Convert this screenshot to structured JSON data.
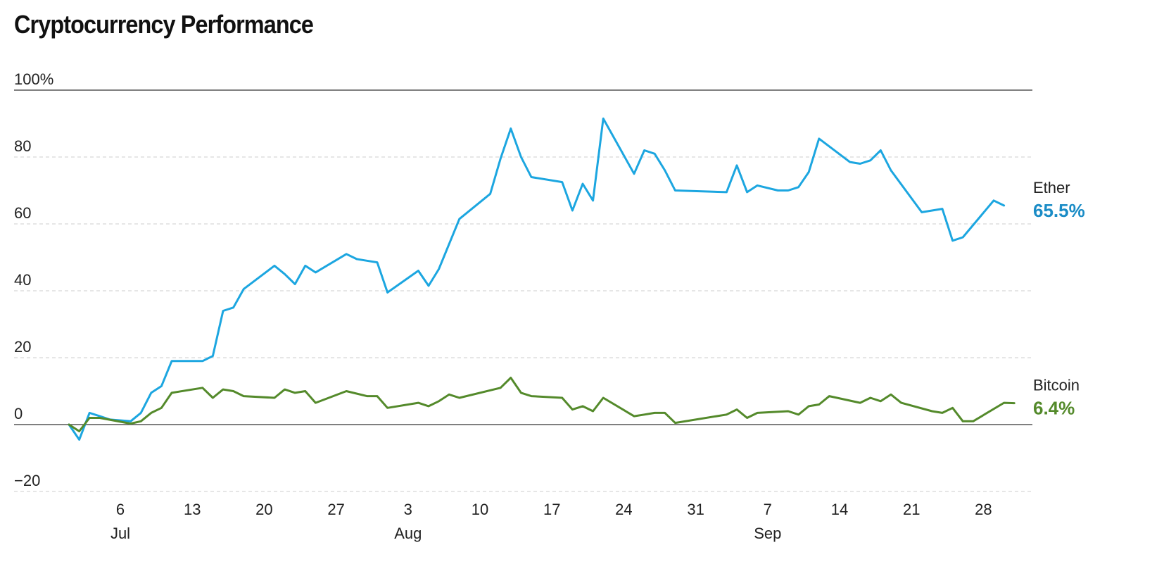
{
  "chart_data": {
    "type": "line",
    "title": "Cryptocurrency Performance",
    "xlabel": "",
    "ylabel": "",
    "y_unit": "%",
    "ylim": [
      -20,
      100
    ],
    "x_range": [
      "2017-07-01",
      "2017-09-30"
    ],
    "grid": true,
    "legend": "none",
    "y_ticks": [
      {
        "value": 100,
        "label": "100%"
      },
      {
        "value": 80,
        "label": "80"
      },
      {
        "value": 60,
        "label": "60"
      },
      {
        "value": 40,
        "label": "40"
      },
      {
        "value": 20,
        "label": "20"
      },
      {
        "value": 0,
        "label": "0"
      },
      {
        "value": -20,
        "label": "−20"
      }
    ],
    "x_ticks": [
      {
        "date": "2017-07-06",
        "label": "6",
        "month": "Jul"
      },
      {
        "date": "2017-07-13",
        "label": "13"
      },
      {
        "date": "2017-07-20",
        "label": "20"
      },
      {
        "date": "2017-07-27",
        "label": "27"
      },
      {
        "date": "2017-08-03",
        "label": "3",
        "month": "Aug"
      },
      {
        "date": "2017-08-10",
        "label": "10"
      },
      {
        "date": "2017-08-17",
        "label": "17"
      },
      {
        "date": "2017-08-24",
        "label": "24"
      },
      {
        "date": "2017-08-31",
        "label": "31"
      },
      {
        "date": "2017-09-07",
        "label": "7",
        "month": "Sep"
      },
      {
        "date": "2017-09-14",
        "label": "14"
      },
      {
        "date": "2017-09-21",
        "label": "21"
      },
      {
        "date": "2017-09-28",
        "label": "28"
      }
    ],
    "series": [
      {
        "name": "Ether",
        "end_label": "65.5%",
        "color": "#1ca6e0",
        "label_color": "#1a8cc6",
        "points": [
          [
            "2017-07-01",
            0
          ],
          [
            "2017-07-02",
            -4.5
          ],
          [
            "2017-07-03",
            3.5
          ],
          [
            "2017-07-04",
            2.5
          ],
          [
            "2017-07-05",
            1.5
          ],
          [
            "2017-07-07",
            1
          ],
          [
            "2017-07-08",
            3.5
          ],
          [
            "2017-07-09",
            9.5
          ],
          [
            "2017-07-10",
            11.5
          ],
          [
            "2017-07-11",
            19
          ],
          [
            "2017-07-14",
            19
          ],
          [
            "2017-07-15",
            20.5
          ],
          [
            "2017-07-16",
            34
          ],
          [
            "2017-07-17",
            35
          ],
          [
            "2017-07-18",
            40.5
          ],
          [
            "2017-07-21",
            47.5
          ],
          [
            "2017-07-22",
            45
          ],
          [
            "2017-07-23",
            42
          ],
          [
            "2017-07-24",
            47.5
          ],
          [
            "2017-07-25",
            45.5
          ],
          [
            "2017-07-28",
            51
          ],
          [
            "2017-07-29",
            49.5
          ],
          [
            "2017-07-30",
            49
          ],
          [
            "2017-07-31",
            48.5
          ],
          [
            "2017-08-01",
            39.5
          ],
          [
            "2017-08-04",
            46
          ],
          [
            "2017-08-05",
            41.5
          ],
          [
            "2017-08-06",
            46.5
          ],
          [
            "2017-08-08",
            61.5
          ],
          [
            "2017-08-11",
            69
          ],
          [
            "2017-08-12",
            79.5
          ],
          [
            "2017-08-13",
            88.5
          ],
          [
            "2017-08-14",
            80
          ],
          [
            "2017-08-15",
            74
          ],
          [
            "2017-08-18",
            72.5
          ],
          [
            "2017-08-19",
            64
          ],
          [
            "2017-08-20",
            72
          ],
          [
            "2017-08-21",
            67
          ],
          [
            "2017-08-22",
            91.5
          ],
          [
            "2017-08-25",
            75
          ],
          [
            "2017-08-26",
            82
          ],
          [
            "2017-08-27",
            81
          ],
          [
            "2017-08-28",
            76
          ],
          [
            "2017-08-29",
            70
          ],
          [
            "2017-09-03",
            69.5
          ],
          [
            "2017-09-04",
            77.5
          ],
          [
            "2017-09-05",
            69.5
          ],
          [
            "2017-09-06",
            71.5
          ],
          [
            "2017-09-08",
            70
          ],
          [
            "2017-09-09",
            70
          ],
          [
            "2017-09-10",
            71
          ],
          [
            "2017-09-11",
            75.5
          ],
          [
            "2017-09-12",
            85.5
          ],
          [
            "2017-09-15",
            78.5
          ],
          [
            "2017-09-16",
            78
          ],
          [
            "2017-09-17",
            79
          ],
          [
            "2017-09-18",
            82
          ],
          [
            "2017-09-19",
            76
          ],
          [
            "2017-09-22",
            63.5
          ],
          [
            "2017-09-24",
            64.5
          ],
          [
            "2017-09-25",
            55
          ],
          [
            "2017-09-26",
            56
          ],
          [
            "2017-09-29",
            67
          ],
          [
            "2017-09-30",
            65.5
          ]
        ]
      },
      {
        "name": "Bitcoin",
        "end_label": "6.4%",
        "color": "#548a2b",
        "label_color": "#548a2b",
        "points": [
          [
            "2017-07-01",
            0
          ],
          [
            "2017-07-02",
            -2
          ],
          [
            "2017-07-03",
            2
          ],
          [
            "2017-07-04",
            2
          ],
          [
            "2017-07-07",
            0.3
          ],
          [
            "2017-07-08",
            1
          ],
          [
            "2017-07-09",
            3.5
          ],
          [
            "2017-07-10",
            5
          ],
          [
            "2017-07-11",
            9.5
          ],
          [
            "2017-07-14",
            11
          ],
          [
            "2017-07-15",
            8
          ],
          [
            "2017-07-16",
            10.5
          ],
          [
            "2017-07-17",
            10
          ],
          [
            "2017-07-18",
            8.5
          ],
          [
            "2017-07-21",
            8
          ],
          [
            "2017-07-22",
            10.5
          ],
          [
            "2017-07-23",
            9.5
          ],
          [
            "2017-07-24",
            10
          ],
          [
            "2017-07-25",
            6.5
          ],
          [
            "2017-07-28",
            10
          ],
          [
            "2017-07-30",
            8.5
          ],
          [
            "2017-07-31",
            8.5
          ],
          [
            "2017-08-01",
            5
          ],
          [
            "2017-08-04",
            6.5
          ],
          [
            "2017-08-05",
            5.5
          ],
          [
            "2017-08-06",
            7
          ],
          [
            "2017-08-07",
            9
          ],
          [
            "2017-08-08",
            8
          ],
          [
            "2017-08-12",
            11
          ],
          [
            "2017-08-13",
            14
          ],
          [
            "2017-08-14",
            9.5
          ],
          [
            "2017-08-15",
            8.5
          ],
          [
            "2017-08-18",
            8
          ],
          [
            "2017-08-19",
            4.5
          ],
          [
            "2017-08-20",
            5.5
          ],
          [
            "2017-08-21",
            4
          ],
          [
            "2017-08-22",
            8
          ],
          [
            "2017-08-25",
            2.5
          ],
          [
            "2017-08-26",
            3
          ],
          [
            "2017-08-27",
            3.5
          ],
          [
            "2017-08-28",
            3.5
          ],
          [
            "2017-08-29",
            0.5
          ],
          [
            "2017-09-03",
            3
          ],
          [
            "2017-09-04",
            4.5
          ],
          [
            "2017-09-05",
            2
          ],
          [
            "2017-09-06",
            3.5
          ],
          [
            "2017-09-09",
            4
          ],
          [
            "2017-09-10",
            3
          ],
          [
            "2017-09-11",
            5.5
          ],
          [
            "2017-09-12",
            6
          ],
          [
            "2017-09-13",
            8.5
          ],
          [
            "2017-09-16",
            6.5
          ],
          [
            "2017-09-17",
            8
          ],
          [
            "2017-09-18",
            7
          ],
          [
            "2017-09-19",
            9
          ],
          [
            "2017-09-20",
            6.5
          ],
          [
            "2017-09-23",
            4
          ],
          [
            "2017-09-24",
            3.5
          ],
          [
            "2017-09-25",
            5
          ],
          [
            "2017-09-26",
            1
          ],
          [
            "2017-09-27",
            1
          ],
          [
            "2017-09-30",
            6.5
          ],
          [
            "2017-10-01",
            6.4
          ]
        ]
      }
    ]
  }
}
